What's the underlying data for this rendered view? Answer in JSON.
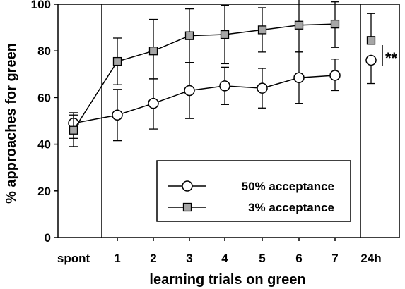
{
  "chart_data": {
    "type": "line",
    "xlabel": "learning trials on green",
    "ylabel": "% approaches for green",
    "ylim": [
      0,
      100
    ],
    "yticks": [
      0,
      20,
      40,
      60,
      80,
      100
    ],
    "categories": [
      "spont",
      "1",
      "2",
      "3",
      "4",
      "5",
      "6",
      "7",
      "24h"
    ],
    "grid": false,
    "legend_position": "bottom-right",
    "panels": [
      "spont",
      "learning trials",
      "24h"
    ],
    "series": [
      {
        "name": "50% acceptance",
        "marker": "circle-open",
        "values": [
          49,
          52.5,
          57.5,
          63,
          65,
          64,
          68.5,
          69.5,
          76
        ],
        "err_low": [
          10,
          11,
          11,
          12,
          8,
          8.5,
          11,
          6.5,
          10
        ],
        "err_high": [
          4.5,
          11,
          10.5,
          12,
          8,
          8.5,
          11,
          7,
          0
        ],
        "connected_through": 7
      },
      {
        "name": "3% acceptance",
        "marker": "square-filled",
        "values": [
          46,
          75.5,
          80,
          86.5,
          87,
          89,
          91,
          91.5,
          84.5
        ],
        "err_low": [
          3.5,
          10,
          12,
          11.5,
          12.5,
          9.5,
          11.5,
          10,
          0
        ],
        "err_high": [
          6.5,
          10,
          13.5,
          11.5,
          12.5,
          9.5,
          11.5,
          9.5,
          11.5
        ],
        "connected_through": 7
      }
    ],
    "annotation": {
      "text": "**",
      "between": "24h points"
    },
    "colors": {
      "open_marker_fill": "#ffffff",
      "square_marker_fill": "#a6a6a6",
      "line": "#000000"
    }
  }
}
